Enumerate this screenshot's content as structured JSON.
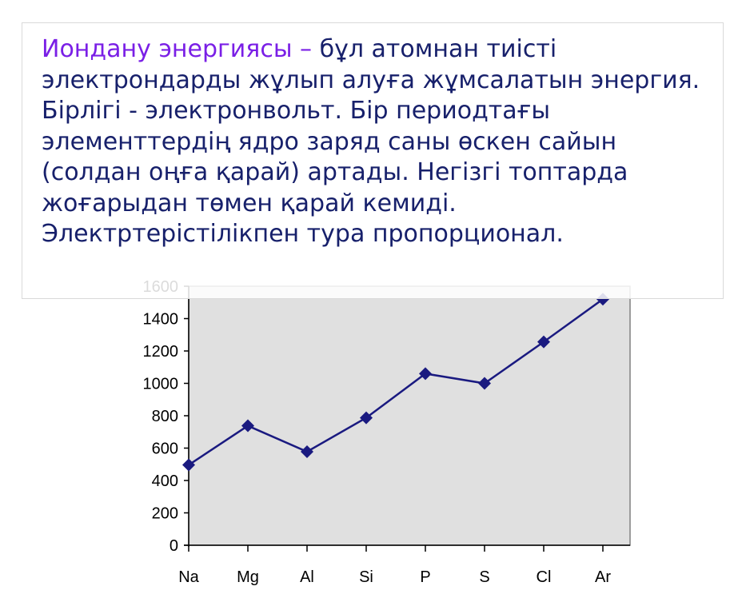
{
  "text_box": {
    "term": "Иондану энергиясы –",
    "body": " бұл атомнан тиісті электрондарды жұлып алуға жұмсалатын энергия. Бірлігі - электронвольт. Бір периодтағы элементтердің ядро заряд саны өскен сайын (солдан оңға қарай) артады. Негізгі топтарда жоғарыдан төмен қарай кемиді. Электртерістілікпен тура пропорционал.",
    "term_color": "#7a1fe6",
    "body_color": "#17206b"
  },
  "chart_data": {
    "type": "line",
    "categories": [
      "Na",
      "Mg",
      "Al",
      "Si",
      "P",
      "S",
      "Cl",
      "Ar"
    ],
    "series": [
      {
        "values": [
          496,
          738,
          578,
          787,
          1060,
          1000,
          1256,
          1520
        ],
        "color": "#1a1a80"
      }
    ],
    "title": "",
    "xlabel": "",
    "ylabel": "",
    "ylim": [
      0,
      1600
    ],
    "yticks": [
      0,
      200,
      400,
      600,
      800,
      1000,
      1200,
      1400,
      1600
    ],
    "ytick_labels": [
      "0",
      "200",
      "400",
      "600",
      "800",
      "1000",
      "1200",
      "1400",
      "1600"
    ],
    "grid": false,
    "plot_background": "#e0e0e0",
    "marker": "diamond"
  }
}
